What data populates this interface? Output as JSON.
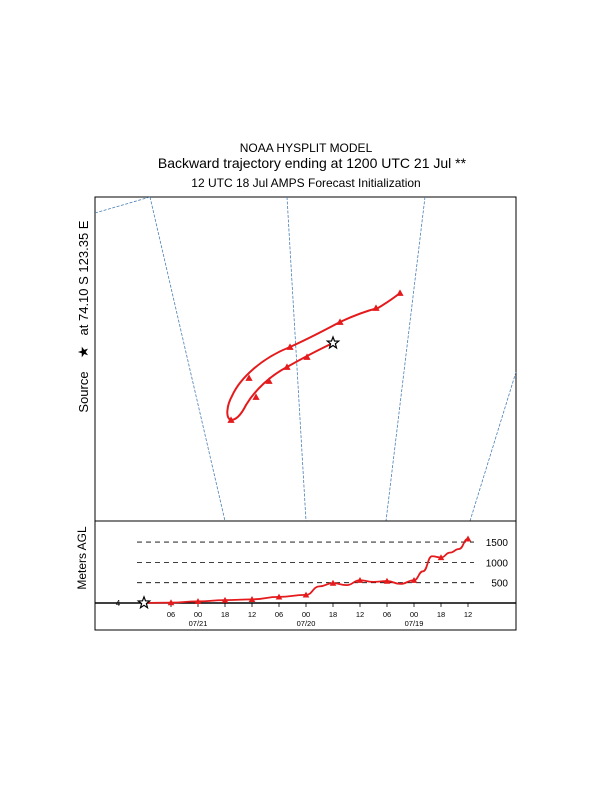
{
  "header": {
    "line1": "NOAA HYSPLIT MODEL",
    "line2": "Backward trajectory ending at 1200 UTC 21 Jul **",
    "line3": "12 UTC 18 Jul    AMPS  Forecast Initialization"
  },
  "map": {
    "source_label": "Source",
    "source_location": "at   74.10 S  123.35 E"
  },
  "colors": {
    "trajectory": "#e41a1c",
    "gridline": "#4a7fb5",
    "frame": "#000000"
  },
  "chart_data": {
    "type": "line",
    "title": "",
    "ylabel": "Meters AGL",
    "y_ticks": [
      "1500",
      "1000",
      "500"
    ],
    "y_tick_values": [
      1500,
      1000,
      500
    ],
    "ylim": [
      0,
      1600
    ],
    "x_tick_labels": [
      "06",
      "00",
      "18",
      "12",
      "06",
      "00",
      "18",
      "12",
      "06",
      "00",
      "18",
      "12"
    ],
    "x_date_labels": [
      "07/21",
      "07/20",
      "07/19"
    ],
    "x_hours_back": [
      6,
      12,
      18,
      24,
      30,
      36,
      42,
      48,
      54,
      60,
      66,
      72
    ],
    "source_marker": "star",
    "source_height_label": "4",
    "series": [
      {
        "hours_back": [
          0,
          6,
          12,
          18,
          24,
          30,
          36,
          39,
          42,
          45,
          48,
          51,
          54,
          57,
          60,
          62,
          64,
          66,
          68,
          70,
          72
        ],
        "values": [
          4,
          10,
          40,
          70,
          90,
          150,
          200,
          410,
          490,
          440,
          560,
          520,
          540,
          470,
          560,
          780,
          1150,
          1120,
          1240,
          1330,
          1580
        ],
        "markers_hours": [
          0,
          6,
          12,
          18,
          24,
          30,
          36,
          42,
          48,
          54,
          60,
          66,
          72
        ]
      }
    ]
  }
}
